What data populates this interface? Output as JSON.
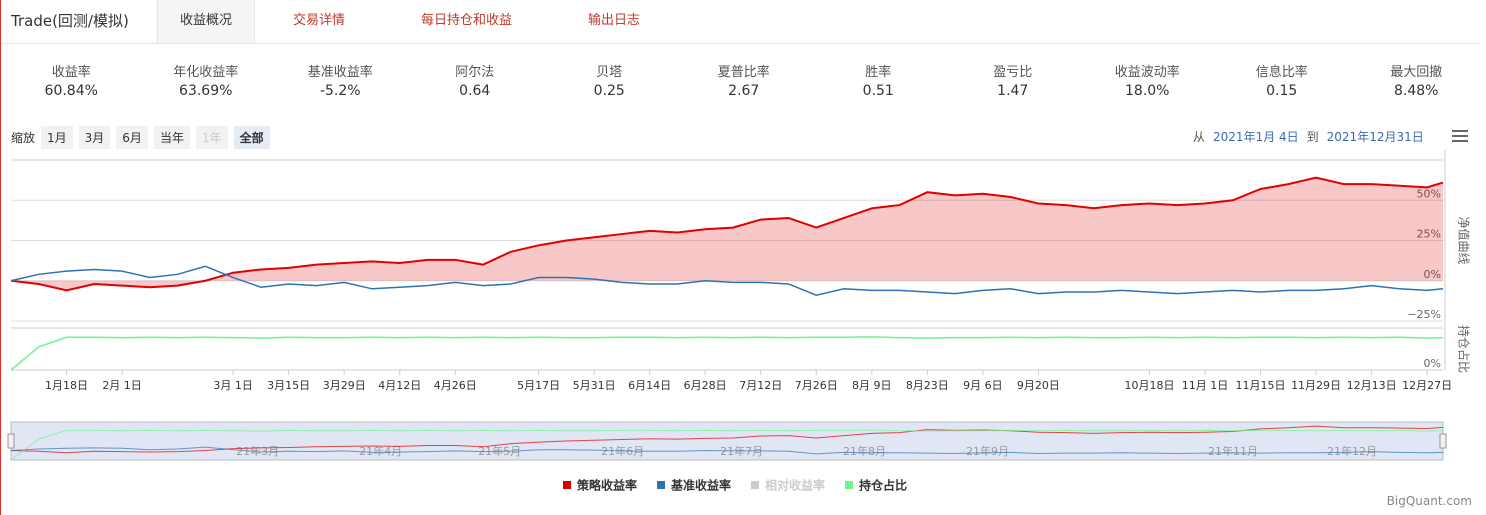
{
  "header": {
    "title": "Trade(回测/模拟)",
    "tabs": [
      "收益概况",
      "交易详情",
      "每日持仓和收益",
      "输出日志"
    ],
    "active_tab": 0
  },
  "metrics": [
    {
      "label": "收益率",
      "value": "60.84%"
    },
    {
      "label": "年化收益率",
      "value": "63.69%"
    },
    {
      "label": "基准收益率",
      "value": "-5.2%"
    },
    {
      "label": "阿尔法",
      "value": "0.64"
    },
    {
      "label": "贝塔",
      "value": "0.25"
    },
    {
      "label": "夏普比率",
      "value": "2.67"
    },
    {
      "label": "胜率",
      "value": "0.51"
    },
    {
      "label": "盈亏比",
      "value": "1.47"
    },
    {
      "label": "收益波动率",
      "value": "18.0%"
    },
    {
      "label": "信息比率",
      "value": "0.15"
    },
    {
      "label": "最大回撤",
      "value": "8.48%"
    }
  ],
  "zoom": {
    "label": "缩放",
    "buttons": [
      "1月",
      "3月",
      "6月",
      "当年",
      "1年",
      "全部"
    ],
    "disabled": [
      4
    ],
    "active": 5
  },
  "range": {
    "from_label": "从",
    "from": "2021年1月 4日",
    "to_label": "到",
    "to": "2021年12月31日"
  },
  "footer": "BigQuant.com",
  "chart_data": {
    "type": "line",
    "x": [
      "2021-01-04",
      "2021-01-11",
      "2021-01-18",
      "2021-01-25",
      "2021-02-01",
      "2021-02-08",
      "2021-02-15",
      "2021-02-22",
      "2021-03-01",
      "2021-03-08",
      "2021-03-15",
      "2021-03-22",
      "2021-03-29",
      "2021-04-05",
      "2021-04-12",
      "2021-04-19",
      "2021-04-26",
      "2021-05-03",
      "2021-05-10",
      "2021-05-17",
      "2021-05-24",
      "2021-05-31",
      "2021-06-07",
      "2021-06-14",
      "2021-06-21",
      "2021-06-28",
      "2021-07-05",
      "2021-07-12",
      "2021-07-19",
      "2021-07-26",
      "2021-08-02",
      "2021-08-09",
      "2021-08-16",
      "2021-08-23",
      "2021-08-30",
      "2021-09-06",
      "2021-09-13",
      "2021-09-20",
      "2021-09-27",
      "2021-10-04",
      "2021-10-11",
      "2021-10-18",
      "2021-10-25",
      "2021-11-01",
      "2021-11-08",
      "2021-11-15",
      "2021-11-22",
      "2021-11-29",
      "2021-12-06",
      "2021-12-13",
      "2021-12-20",
      "2021-12-27",
      "2021-12-31"
    ],
    "xlim": [
      "2021-01-04",
      "2021-12-31"
    ],
    "xticks": [
      {
        "value": "2021-01-18",
        "label": "1月18日"
      },
      {
        "value": "2021-02-01",
        "label": "2月 1日"
      },
      {
        "value": "2021-03-01",
        "label": "3月 1日"
      },
      {
        "value": "2021-03-15",
        "label": "3月15日"
      },
      {
        "value": "2021-03-29",
        "label": "3月29日"
      },
      {
        "value": "2021-04-12",
        "label": "4月12日"
      },
      {
        "value": "2021-04-26",
        "label": "4月26日"
      },
      {
        "value": "2021-05-17",
        "label": "5月17日"
      },
      {
        "value": "2021-05-31",
        "label": "5月31日"
      },
      {
        "value": "2021-06-14",
        "label": "6月14日"
      },
      {
        "value": "2021-06-28",
        "label": "6月28日"
      },
      {
        "value": "2021-07-12",
        "label": "7月12日"
      },
      {
        "value": "2021-07-26",
        "label": "7月26日"
      },
      {
        "value": "2021-08-09",
        "label": "8月 9日"
      },
      {
        "value": "2021-08-23",
        "label": "8月23日"
      },
      {
        "value": "2021-09-06",
        "label": "9月 6日"
      },
      {
        "value": "2021-09-20",
        "label": "9月20日"
      },
      {
        "value": "2021-10-18",
        "label": "10月18日"
      },
      {
        "value": "2021-11-01",
        "label": "11月 1日"
      },
      {
        "value": "2021-11-15",
        "label": "11月15日"
      },
      {
        "value": "2021-11-29",
        "label": "11月29日"
      },
      {
        "value": "2021-12-13",
        "label": "12月13日"
      },
      {
        "value": "2021-12-27",
        "label": "12月27日"
      }
    ],
    "navigator_ticks": [
      {
        "value": "2021-03-01",
        "label": "21年3月"
      },
      {
        "value": "2021-04-01",
        "label": "21年4月"
      },
      {
        "value": "2021-05-01",
        "label": "21年5月"
      },
      {
        "value": "2021-06-01",
        "label": "21年6月"
      },
      {
        "value": "2021-07-01",
        "label": "21年7月"
      },
      {
        "value": "2021-08-01",
        "label": "21年8月"
      },
      {
        "value": "2021-09-01",
        "label": "21年9月"
      },
      {
        "value": "2021-11-01",
        "label": "21年11月"
      },
      {
        "value": "2021-12-01",
        "label": "21年12月"
      }
    ],
    "ylim": [
      -25,
      75
    ],
    "yticks": [
      {
        "value": -25,
        "label": "−25%"
      },
      {
        "value": 0,
        "label": "0%"
      },
      {
        "value": 25,
        "label": "25%"
      },
      {
        "value": 50,
        "label": "50%"
      }
    ],
    "ylabel": "净值曲线",
    "y2lim": [
      0,
      100
    ],
    "y2ticks": [
      {
        "value": 0,
        "label": "0%"
      }
    ],
    "y2label": "持仓占比",
    "grid": true,
    "series": [
      {
        "name": "策略收益率",
        "color": "#e00000",
        "area": true,
        "values": [
          0,
          -2,
          -6,
          -2,
          -3,
          -4,
          -3,
          0,
          5,
          7,
          8,
          10,
          11,
          12,
          11,
          13,
          13,
          10,
          18,
          22,
          25,
          27,
          29,
          31,
          30,
          32,
          33,
          38,
          39,
          33,
          39,
          45,
          47,
          55,
          53,
          54,
          52,
          48,
          47,
          45,
          47,
          48,
          47,
          48,
          50,
          57,
          60,
          64,
          60,
          60,
          59,
          58,
          61
        ]
      },
      {
        "name": "基准收益率",
        "color": "#2f72b4",
        "values": [
          0,
          4,
          6,
          7,
          6,
          2,
          4,
          9,
          2,
          -4,
          -2,
          -3,
          -1,
          -5,
          -4,
          -3,
          -1,
          -3,
          -2,
          2,
          2,
          1,
          -1,
          -2,
          -2,
          0,
          -1,
          -1,
          -2,
          -9,
          -5,
          -6,
          -6,
          -7,
          -8,
          -6,
          -5,
          -8,
          -7,
          -7,
          -6,
          -7,
          -8,
          -7,
          -6,
          -7,
          -6,
          -6,
          -5,
          -3,
          -5,
          -6,
          -5
        ]
      },
      {
        "name": "相对收益率",
        "color": "#cccccc",
        "visible": false
      },
      {
        "name": "持仓占比",
        "color": "#6ef58c",
        "axis": "y2",
        "values": [
          0,
          55,
          78,
          78,
          77,
          78,
          77,
          78,
          77,
          76,
          78,
          77,
          77,
          78,
          77,
          78,
          77,
          78,
          77,
          78,
          77,
          77,
          78,
          78,
          77,
          78,
          77,
          78,
          77,
          78,
          78,
          79,
          77,
          76,
          77,
          77,
          78,
          77,
          78,
          77,
          77,
          78,
          77,
          78,
          77,
          78,
          78,
          77,
          78,
          77,
          78,
          76,
          77
        ]
      }
    ]
  }
}
